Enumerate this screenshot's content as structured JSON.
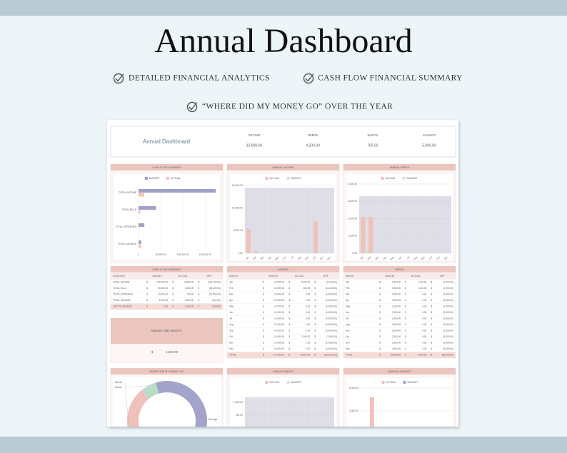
{
  "header": {
    "title": "Annual Dashboard"
  },
  "features": [
    "DETAILED FINANCIAL ANALYTICS",
    "CASH FLOW FINANCIAL SUMMARY",
    "“WHERE DID MY MONEY GO” OVER THE YEAR"
  ],
  "dashboard": {
    "title": "Annual Dashboard",
    "currency": "$",
    "summary": [
      {
        "label": "INCOME",
        "value": "12,800.00"
      },
      {
        "label": "NEEDS",
        "value": "4,200.00"
      },
      {
        "label": "WANTS",
        "value": "700.00"
      },
      {
        "label": "SAVINGS",
        "value": "5,900.00"
      }
    ],
    "cash_flow_chart": {
      "type": "bar",
      "title": "CASH FLOW SUMMARY",
      "categories": [
        "TOTAL INCOME",
        "TOTAL BILLS",
        "TOTAL EXPENSES",
        "TOTAL SAVINGS"
      ],
      "series": [
        {
          "name": "BUDGET",
          "color": "#a0a1c9",
          "values": [
            174000,
            39600,
            13200,
            6000
          ]
        },
        {
          "name": "ACTUAL",
          "color": "#f3c3bb",
          "values": [
            12800,
            4200,
            700,
            5900
          ]
        }
      ],
      "xlim": [
        0,
        180000
      ],
      "xticks": [
        0,
        {
          "value": 50000,
          "label": "50,000.00"
        },
        {
          "value": 100000,
          "label": "100,000.00"
        },
        {
          "value": 150000,
          "label": "150,000.00"
        }
      ]
    },
    "income_chart": {
      "type": "bar",
      "title": "ANNUAL INCOME",
      "categories": [
        "Jan",
        "Feb",
        "Mar",
        "Apr",
        "May",
        "Jun",
        "Jul",
        "Aug",
        "Sep",
        "Oct",
        "Nov",
        "Dec"
      ],
      "series": [
        {
          "name": "ACTUAL",
          "color": "#f1c1b9",
          "values": [
            5400,
            400,
            0,
            0,
            0,
            0,
            0,
            0,
            0,
            7000,
            0,
            0
          ]
        },
        {
          "name": "BUDGET",
          "color": "#dfdde6",
          "values": [
            14500,
            14500,
            14500,
            14500,
            14500,
            14500,
            14500,
            14500,
            14500,
            14500,
            14500,
            14500
          ]
        }
      ],
      "ylim": [
        0,
        15000
      ],
      "yticks": [
        {
          "value": 0,
          "label": "0.00"
        },
        {
          "value": 5000,
          "label": "5,000.00"
        },
        {
          "value": 10000,
          "label": "10,000.00"
        },
        {
          "value": 15000,
          "label": "15,000.00"
        }
      ]
    },
    "needs_chart": {
      "type": "bar",
      "title": "ANNUAL NEEDS",
      "categories": [
        "Jan",
        "Feb",
        "Mar",
        "Apr",
        "May",
        "Jun",
        "Jul",
        "Aug",
        "Sep",
        "Oct",
        "Nov",
        "Dec"
      ],
      "series": [
        {
          "name": "ACTUAL",
          "color": "#f1c1b9",
          "values": [
            2100,
            2100,
            0,
            0,
            0,
            0,
            0,
            0,
            0,
            0,
            0,
            0
          ]
        },
        {
          "name": "BUDGET",
          "color": "#dfdde6",
          "values": [
            3300,
            3300,
            3300,
            3300,
            3300,
            3300,
            3300,
            3300,
            3300,
            3300,
            3300,
            3300
          ]
        }
      ],
      "ylim": [
        0,
        4000
      ],
      "yticks": [
        {
          "value": 0,
          "label": "0.00"
        },
        {
          "value": 1000,
          "label": "1,000.00"
        },
        {
          "value": 2000,
          "label": "2,000.00"
        },
        {
          "value": 3000,
          "label": "3,000.00"
        },
        {
          "value": 4000,
          "label": "4,000.00"
        }
      ]
    },
    "cash_flow_table": {
      "title": "CASH FLOW SUMMARY",
      "columns": [
        "CATEGORY",
        "BUDGET",
        "ACTUAL",
        "DIFF"
      ],
      "rows": [
        [
          "TOTAL INCOME",
          "174,000.00",
          "12,800.00",
          "(161,200.00)"
        ],
        [
          "TOTAL BILLS",
          "39,600.00",
          "4,200.00",
          "(35,400.00)"
        ],
        [
          "TOTAL EXPENSES",
          "13,200.00",
          "700.00",
          "(12,500.00)"
        ],
        [
          "TOTAL SAVINGS",
          "6,000.00",
          "5,900.00",
          "(100.00)"
        ]
      ],
      "footer": [
        "LEFT TO BUDGET",
        "0.00",
        "2,000.00",
        "2,000.00"
      ]
    },
    "needs_and_wants": {
      "title": "NEEDS AND WANTS",
      "value": "4,900.00"
    },
    "income_table": {
      "title": "INCOME",
      "columns": [
        "MONTH",
        "BUDGET",
        "ACTUAL",
        "DIFF"
      ],
      "rows": [
        [
          "Jan",
          "14,500.00",
          "5,400.00",
          "(9,100.00)"
        ],
        [
          "Feb",
          "14,500.00",
          "400.00",
          "(14,100.00)"
        ],
        [
          "Mar",
          "14,500.00",
          "0.00",
          "(14,500.00)"
        ],
        [
          "Apr",
          "14,500.00",
          "0.00",
          "(14,500.00)"
        ],
        [
          "May",
          "14,500.00",
          "0.00",
          "(14,500.00)"
        ],
        [
          "Jun",
          "14,500.00",
          "0.00",
          "(14,500.00)"
        ],
        [
          "Jul",
          "14,500.00",
          "0.00",
          "(14,500.00)"
        ],
        [
          "Aug",
          "14,500.00",
          "0.00",
          "(14,500.00)"
        ],
        [
          "Sep",
          "14,500.00",
          "0.00",
          "(14,500.00)"
        ],
        [
          "Oct",
          "14,500.00",
          "7,000.00",
          "(7,500.00)"
        ],
        [
          "Nov",
          "14,500.00",
          "0.00",
          "(14,500.00)"
        ],
        [
          "Dec",
          "14,500.00",
          "0.00",
          "(14,500.00)"
        ]
      ],
      "footer": [
        "TOTAL",
        "174,000.00",
        "12,800.00",
        "(161,200.00)"
      ]
    },
    "needs_table": {
      "title": "NEEDS",
      "columns": [
        "MONTH",
        "BUDGET",
        "ACTUAL",
        "DIFF"
      ],
      "rows": [
        [
          "Jan",
          "3,300.00",
          "2,100.00",
          "(1,200.00)"
        ],
        [
          "Feb",
          "3,300.00",
          "2,100.00",
          "(1,200.00)"
        ],
        [
          "Mar",
          "3,300.00",
          "0.00",
          "(3,300.00)"
        ],
        [
          "Apr",
          "3,300.00",
          "0.00",
          "(3,300.00)"
        ],
        [
          "May",
          "3,300.00",
          "0.00",
          "(3,300.00)"
        ],
        [
          "Jun",
          "3,300.00",
          "0.00",
          "(3,300.00)"
        ],
        [
          "Jul",
          "3,300.00",
          "0.00",
          "(3,300.00)"
        ],
        [
          "Aug",
          "3,300.00",
          "0.00",
          "(3,300.00)"
        ],
        [
          "Sep",
          "3,300.00",
          "0.00",
          "(3,300.00)"
        ],
        [
          "Oct",
          "3,300.00",
          "0.00",
          "(3,300.00)"
        ],
        [
          "Nov",
          "3,300.00",
          "0.00",
          "(3,300.00)"
        ],
        [
          "Dec",
          "3,300.00",
          "0.00",
          "(3,300.00)"
        ]
      ],
      "footer": [
        "TOTAL",
        "39,600.00",
        "4,200.00",
        "(35,400.00)"
      ]
    },
    "money_chart": {
      "type": "pie",
      "title": "WHERE DID MY MONEY GO",
      "segments": [
        {
          "label": "Needs",
          "value": 4200,
          "color": "#f0c1ba"
        },
        {
          "label": "Wants",
          "value": 700,
          "color": "#b9dcc5"
        },
        {
          "label": "Savings",
          "value": 5900,
          "color": "#a2a4cc"
        }
      ]
    },
    "wants_chart": {
      "type": "bar",
      "title": "ANNUAL WANTS",
      "series": [
        {
          "name": "ACTUAL",
          "color": "#f1c1b9",
          "values": [
            null,
            null,
            null,
            null,
            null,
            null,
            null,
            null,
            null,
            null,
            null,
            null
          ]
        },
        {
          "name": "BUDGET",
          "color": "#dfdde6",
          "values": [
            1100,
            1100,
            1100,
            1100,
            1100,
            1100,
            1100,
            1100,
            1100,
            1100,
            1100,
            1100
          ]
        }
      ],
      "ylim": [
        0,
        1125
      ],
      "yticks": [
        {
          "value": 750,
          "label": "750.00"
        },
        {
          "value": 1000,
          "label": "1,000.00"
        }
      ]
    },
    "savings_chart": {
      "type": "bar",
      "title": "ANNUAL SAVINGS",
      "series": [
        {
          "name": "ACTUAL",
          "color": "#f1c1b9",
          "values": [
            null,
            4800,
            null,
            null,
            null,
            null,
            null,
            null,
            null,
            null,
            null,
            null
          ]
        },
        {
          "name": "BUDGET",
          "color": "#a2a4cc",
          "values": [
            null,
            null,
            null,
            null,
            null,
            null,
            null,
            null,
            null,
            null,
            null,
            null
          ]
        }
      ],
      "ylim": [
        0,
        6750
      ],
      "yticks": [
        {
          "value": 3000,
          "label": "3,000.00"
        },
        {
          "value": 6000,
          "label": "6,000.00"
        }
      ]
    }
  }
}
